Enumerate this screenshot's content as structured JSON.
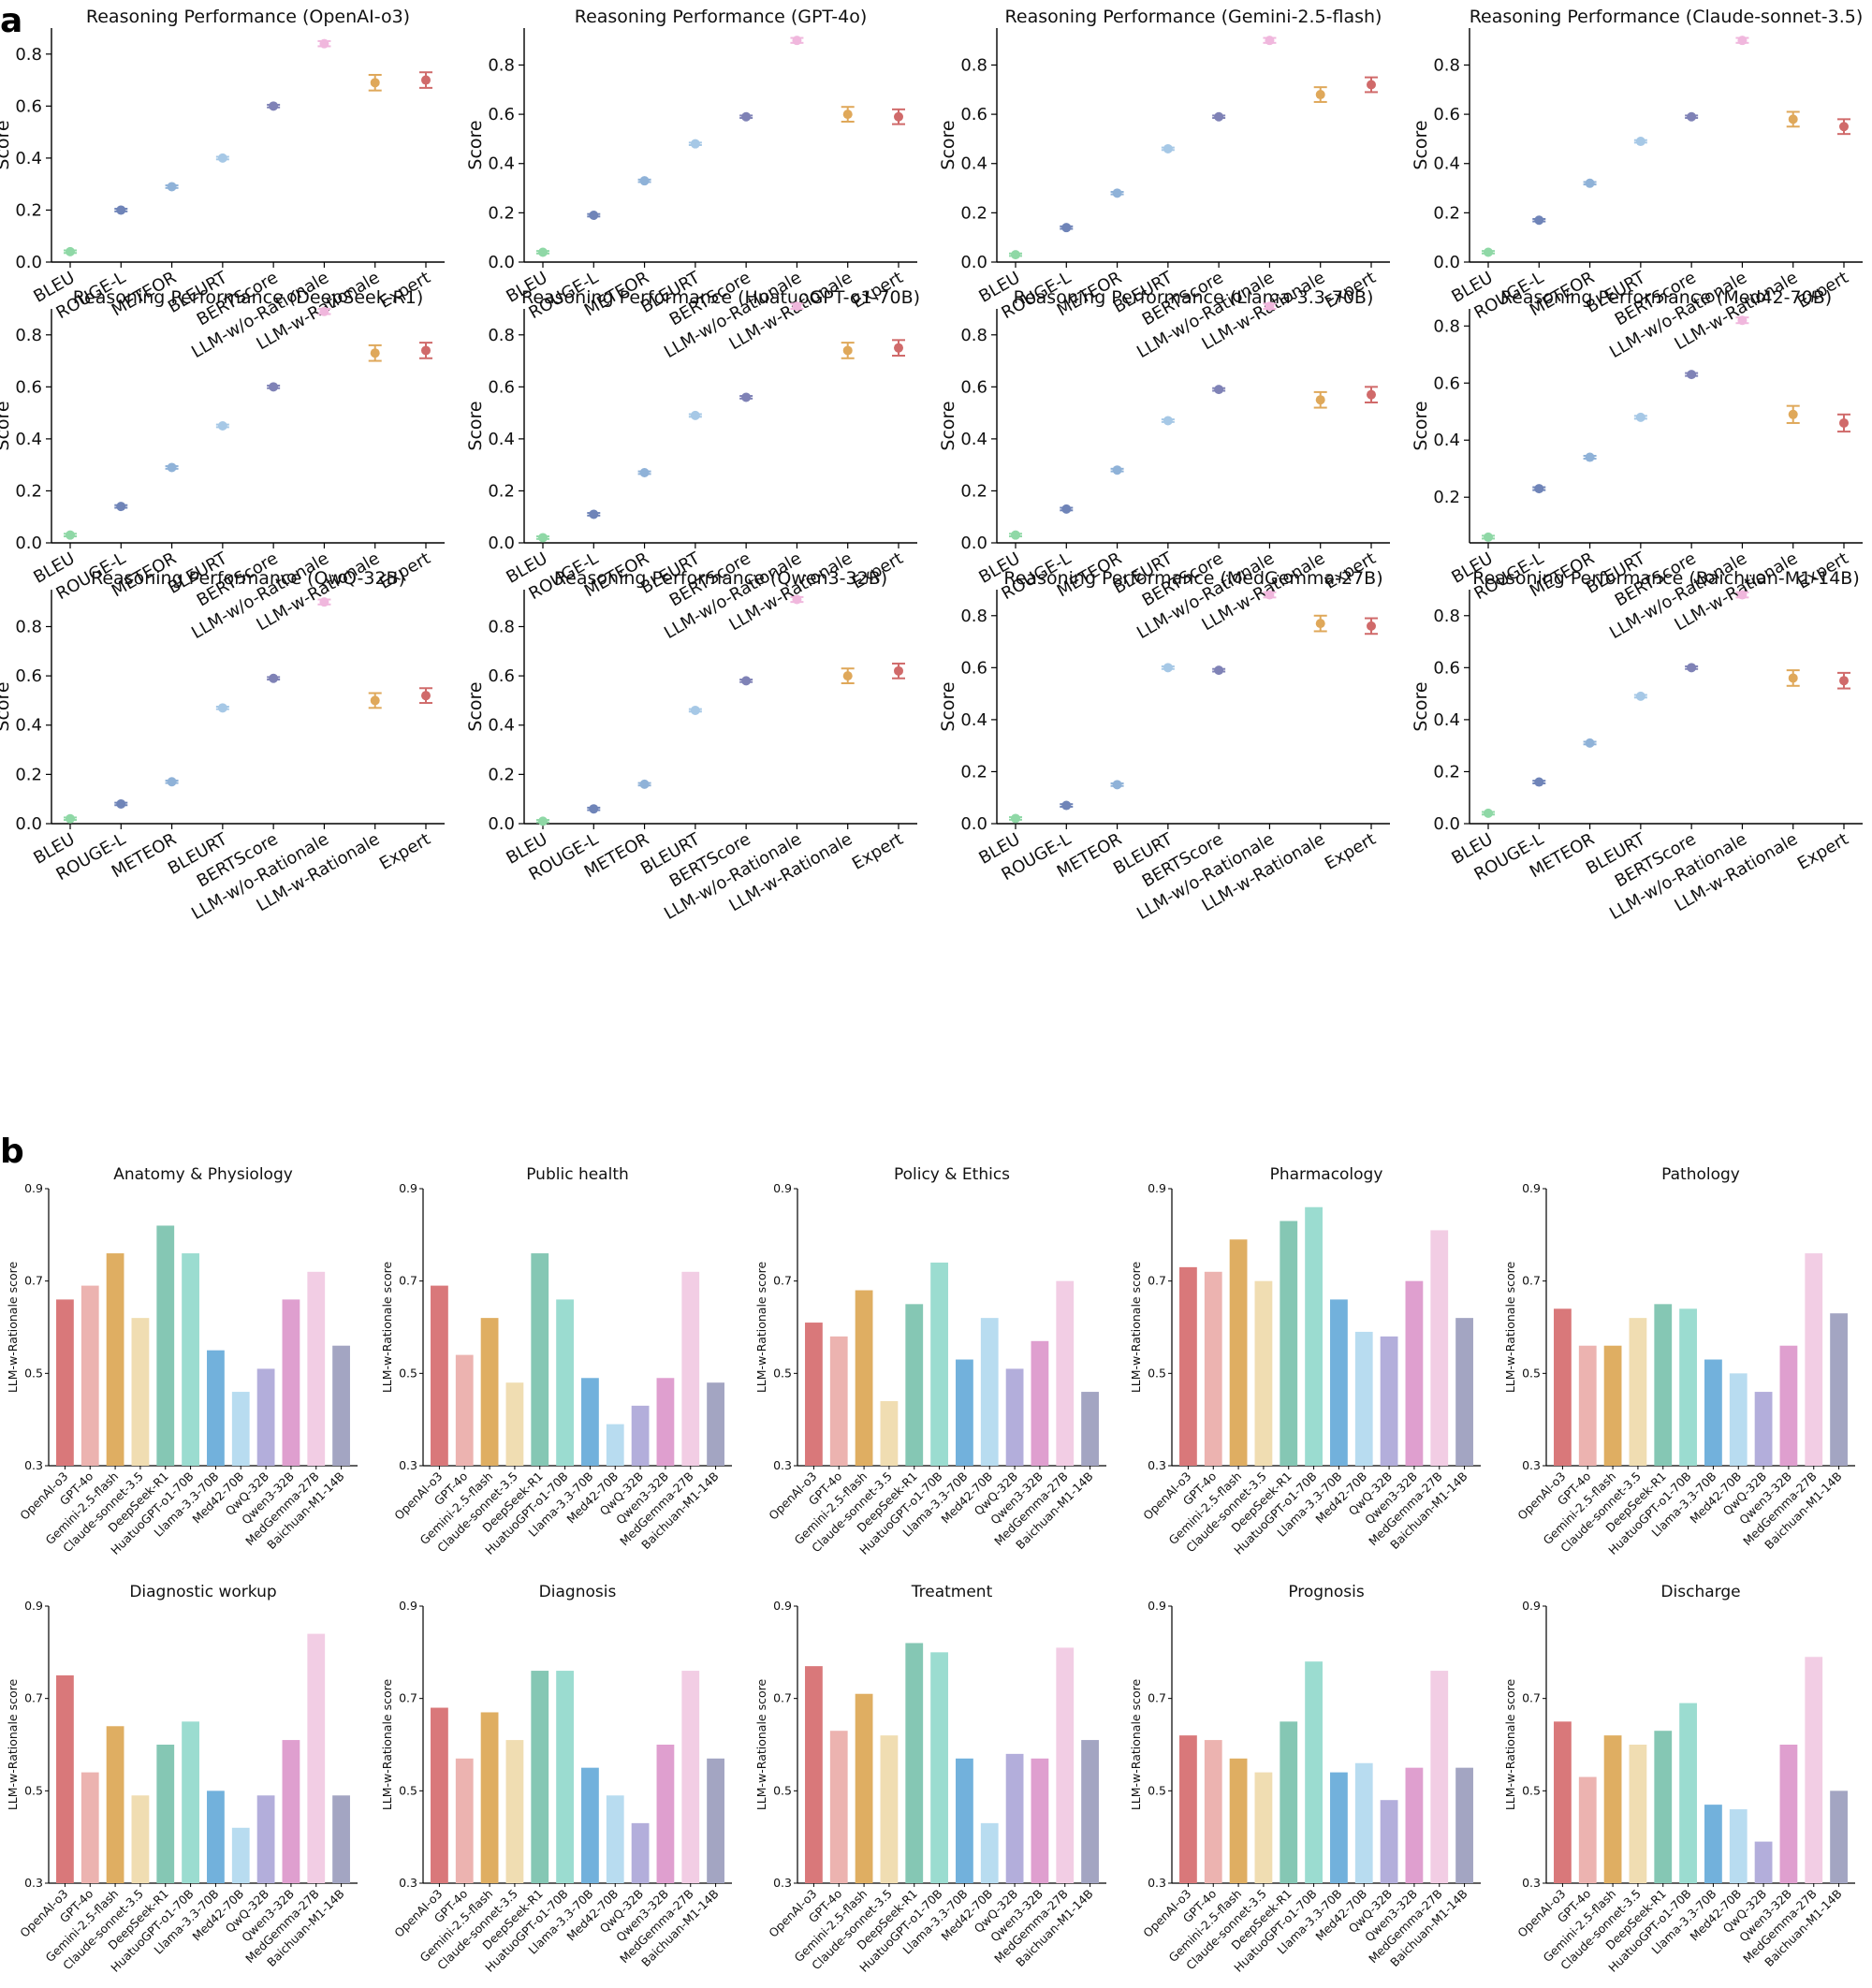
{
  "panel_labels": {
    "a": "a",
    "b": "b"
  },
  "panel_a": {
    "categories": [
      "BLEU",
      "ROUGE-L",
      "METEOR",
      "BLEURT",
      "BERTScore",
      "LLM-w/o-Rationale",
      "LLM-w-Rationale",
      "Expert"
    ],
    "colors": [
      "#8fd8a6",
      "#6f84b8",
      "#8fb2d8",
      "#a6c8e6",
      "#7f82b6",
      "#f0b7dd",
      "#dfa85a",
      "#d06a6a"
    ],
    "ylabel": "Score",
    "ytick_labels": [
      "0.0",
      "0.2",
      "0.4",
      "0.6",
      "0.8"
    ],
    "ytick_labels_med42": [
      "0.2",
      "0.4",
      "0.6",
      "0.8"
    ]
  },
  "panel_b": {
    "models": [
      "OpenAI-o3",
      "GPT-4o",
      "Gemini-2.5-flash",
      "Claude-sonnet-3.5",
      "DeepSeek-R1",
      "HuatuoGPT-o1-70B",
      "Llama-3.3-70B",
      "Med42-70B",
      "QwQ-32B",
      "Qwen3-32B",
      "MedGemma-27B",
      "Baichuan-M1-14B"
    ],
    "colors": [
      "#d9787a",
      "#ecb3b0",
      "#dfae62",
      "#f0ddb2",
      "#85c7b4",
      "#9bdcd0",
      "#72b1dc",
      "#b8dcf0",
      "#b3aedb",
      "#df9fcf",
      "#f2cde4",
      "#a3a5c2"
    ],
    "ylabel": "LLM-w-Rationale score",
    "ytick_labels": [
      "0.3",
      "0.5",
      "0.7",
      "0.9"
    ]
  },
  "chart_data": [
    {
      "type": "scatter",
      "title": "Reasoning Performance (OpenAI-o3)",
      "ylabel": "Score",
      "ylim": [
        0,
        0.9
      ],
      "values": [
        0.04,
        0.2,
        0.29,
        0.4,
        0.6,
        0.84,
        0.69,
        0.7
      ],
      "errors": [
        0.005,
        0.005,
        0.005,
        0.005,
        0.005,
        0.01,
        0.03,
        0.03
      ]
    },
    {
      "type": "scatter",
      "title": "Reasoning Performance (GPT-4o)",
      "ylabel": "Score",
      "ylim": [
        0,
        0.95
      ],
      "values": [
        0.04,
        0.19,
        0.33,
        0.48,
        0.59,
        0.9,
        0.6,
        0.59
      ],
      "errors": [
        0.005,
        0.005,
        0.005,
        0.005,
        0.005,
        0.01,
        0.03,
        0.03
      ]
    },
    {
      "type": "scatter",
      "title": "Reasoning Performance (Gemini-2.5-flash)",
      "ylabel": "Score",
      "ylim": [
        0,
        0.95
      ],
      "values": [
        0.03,
        0.14,
        0.28,
        0.46,
        0.59,
        0.9,
        0.68,
        0.72
      ],
      "errors": [
        0.005,
        0.005,
        0.005,
        0.005,
        0.005,
        0.01,
        0.03,
        0.03
      ]
    },
    {
      "type": "scatter",
      "title": "Reasoning Performance (Claude-sonnet-3.5)",
      "ylabel": "Score",
      "ylim": [
        0,
        0.95
      ],
      "values": [
        0.04,
        0.17,
        0.32,
        0.49,
        0.59,
        0.9,
        0.58,
        0.55
      ],
      "errors": [
        0.005,
        0.005,
        0.005,
        0.005,
        0.005,
        0.01,
        0.03,
        0.03
      ]
    },
    {
      "type": "scatter",
      "title": "Reasoning Performance (DeepSeek-R1)",
      "ylabel": "Score",
      "ylim": [
        0,
        0.9
      ],
      "values": [
        0.03,
        0.14,
        0.29,
        0.45,
        0.6,
        0.89,
        0.73,
        0.74
      ],
      "errors": [
        0.005,
        0.005,
        0.005,
        0.005,
        0.005,
        0.01,
        0.03,
        0.03
      ]
    },
    {
      "type": "scatter",
      "title": "Reasoning Performance (HuatuoGPT-o1-70B)",
      "ylabel": "Score",
      "ylim": [
        0,
        0.9
      ],
      "values": [
        0.02,
        0.11,
        0.27,
        0.49,
        0.56,
        0.91,
        0.74,
        0.75
      ],
      "errors": [
        0.005,
        0.005,
        0.005,
        0.005,
        0.005,
        0.01,
        0.03,
        0.03
      ]
    },
    {
      "type": "scatter",
      "title": "Reasoning Performance (Llama-3.3-70B)",
      "ylabel": "Score",
      "ylim": [
        0,
        0.9
      ],
      "values": [
        0.03,
        0.13,
        0.28,
        0.47,
        0.59,
        0.91,
        0.55,
        0.57
      ],
      "errors": [
        0.005,
        0.005,
        0.005,
        0.005,
        0.005,
        0.01,
        0.03,
        0.03
      ]
    },
    {
      "type": "scatter",
      "title": "Reasoning Performance (Med42-70B)",
      "ylabel": "Score",
      "ylim": [
        0.04,
        0.86
      ],
      "values": [
        0.06,
        0.23,
        0.34,
        0.48,
        0.63,
        0.82,
        0.49,
        0.46
      ],
      "errors": [
        0.005,
        0.005,
        0.005,
        0.005,
        0.005,
        0.01,
        0.03,
        0.03
      ]
    },
    {
      "type": "scatter",
      "title": "Reasoning Performance (QwQ-32B)",
      "ylabel": "Score",
      "ylim": [
        0,
        0.95
      ],
      "values": [
        0.02,
        0.08,
        0.17,
        0.47,
        0.59,
        0.9,
        0.5,
        0.52
      ],
      "errors": [
        0.005,
        0.005,
        0.005,
        0.005,
        0.005,
        0.01,
        0.03,
        0.03
      ]
    },
    {
      "type": "scatter",
      "title": "Reasoning Performance (Qwen3-32B)",
      "ylabel": "Score",
      "ylim": [
        0,
        0.95
      ],
      "values": [
        0.01,
        0.06,
        0.16,
        0.46,
        0.58,
        0.91,
        0.6,
        0.62
      ],
      "errors": [
        0.005,
        0.005,
        0.005,
        0.005,
        0.005,
        0.01,
        0.03,
        0.03
      ]
    },
    {
      "type": "scatter",
      "title": "Reasoning Performance (MedGemma-27B)",
      "ylabel": "Score",
      "ylim": [
        0,
        0.9
      ],
      "values": [
        0.02,
        0.07,
        0.15,
        0.6,
        0.59,
        0.88,
        0.77,
        0.76
      ],
      "errors": [
        0.005,
        0.005,
        0.005,
        0.005,
        0.005,
        0.01,
        0.03,
        0.03
      ]
    },
    {
      "type": "scatter",
      "title": "Reasoning Performance (Baichuan-M1-14B)",
      "ylabel": "Score",
      "ylim": [
        0,
        0.9
      ],
      "values": [
        0.04,
        0.16,
        0.31,
        0.49,
        0.6,
        0.88,
        0.56,
        0.55
      ],
      "errors": [
        0.005,
        0.005,
        0.005,
        0.005,
        0.005,
        0.01,
        0.03,
        0.03
      ]
    },
    {
      "type": "bar",
      "title": "Anatomy & Physiology",
      "ylabel": "LLM-w-Rationale score",
      "ylim": [
        0.3,
        0.9
      ],
      "values": [
        0.66,
        0.69,
        0.76,
        0.62,
        0.82,
        0.76,
        0.55,
        0.46,
        0.51,
        0.66,
        0.72,
        0.56
      ]
    },
    {
      "type": "bar",
      "title": "Public health",
      "ylabel": "LLM-w-Rationale score",
      "ylim": [
        0.3,
        0.9
      ],
      "values": [
        0.69,
        0.54,
        0.62,
        0.48,
        0.76,
        0.66,
        0.49,
        0.39,
        0.43,
        0.49,
        0.72,
        0.48
      ]
    },
    {
      "type": "bar",
      "title": "Policy & Ethics",
      "ylabel": "LLM-w-Rationale score",
      "ylim": [
        0.3,
        0.9
      ],
      "values": [
        0.61,
        0.58,
        0.68,
        0.44,
        0.65,
        0.74,
        0.53,
        0.62,
        0.51,
        0.57,
        0.7,
        0.46
      ]
    },
    {
      "type": "bar",
      "title": "Pharmacology",
      "ylabel": "LLM-w-Rationale score",
      "ylim": [
        0.3,
        0.9
      ],
      "values": [
        0.73,
        0.72,
        0.79,
        0.7,
        0.83,
        0.86,
        0.66,
        0.59,
        0.58,
        0.7,
        0.81,
        0.62
      ]
    },
    {
      "type": "bar",
      "title": "Pathology",
      "ylabel": "LLM-w-Rationale score",
      "ylim": [
        0.3,
        0.9
      ],
      "values": [
        0.64,
        0.56,
        0.56,
        0.62,
        0.65,
        0.64,
        0.53,
        0.5,
        0.46,
        0.56,
        0.76,
        0.63
      ]
    },
    {
      "type": "bar",
      "title": "Diagnostic workup",
      "ylabel": "LLM-w-Rationale score",
      "ylim": [
        0.3,
        0.9
      ],
      "values": [
        0.75,
        0.54,
        0.64,
        0.49,
        0.6,
        0.65,
        0.5,
        0.42,
        0.49,
        0.61,
        0.84,
        0.49
      ]
    },
    {
      "type": "bar",
      "title": "Diagnosis",
      "ylabel": "LLM-w-Rationale score",
      "ylim": [
        0.3,
        0.9
      ],
      "values": [
        0.68,
        0.57,
        0.67,
        0.61,
        0.76,
        0.76,
        0.55,
        0.49,
        0.43,
        0.6,
        0.76,
        0.57
      ]
    },
    {
      "type": "bar",
      "title": "Treatment",
      "ylabel": "LLM-w-Rationale score",
      "ylim": [
        0.3,
        0.9
      ],
      "values": [
        0.77,
        0.63,
        0.71,
        0.62,
        0.82,
        0.8,
        0.57,
        0.43,
        0.58,
        0.57,
        0.81,
        0.61
      ]
    },
    {
      "type": "bar",
      "title": "Prognosis",
      "ylabel": "LLM-w-Rationale score",
      "ylim": [
        0.3,
        0.9
      ],
      "values": [
        0.62,
        0.61,
        0.57,
        0.54,
        0.65,
        0.78,
        0.54,
        0.56,
        0.48,
        0.55,
        0.76,
        0.55
      ]
    },
    {
      "type": "bar",
      "title": "Discharge",
      "ylabel": "LLM-w-Rationale score",
      "ylim": [
        0.3,
        0.9
      ],
      "values": [
        0.65,
        0.53,
        0.62,
        0.6,
        0.63,
        0.69,
        0.47,
        0.46,
        0.39,
        0.6,
        0.79,
        0.5
      ]
    }
  ]
}
